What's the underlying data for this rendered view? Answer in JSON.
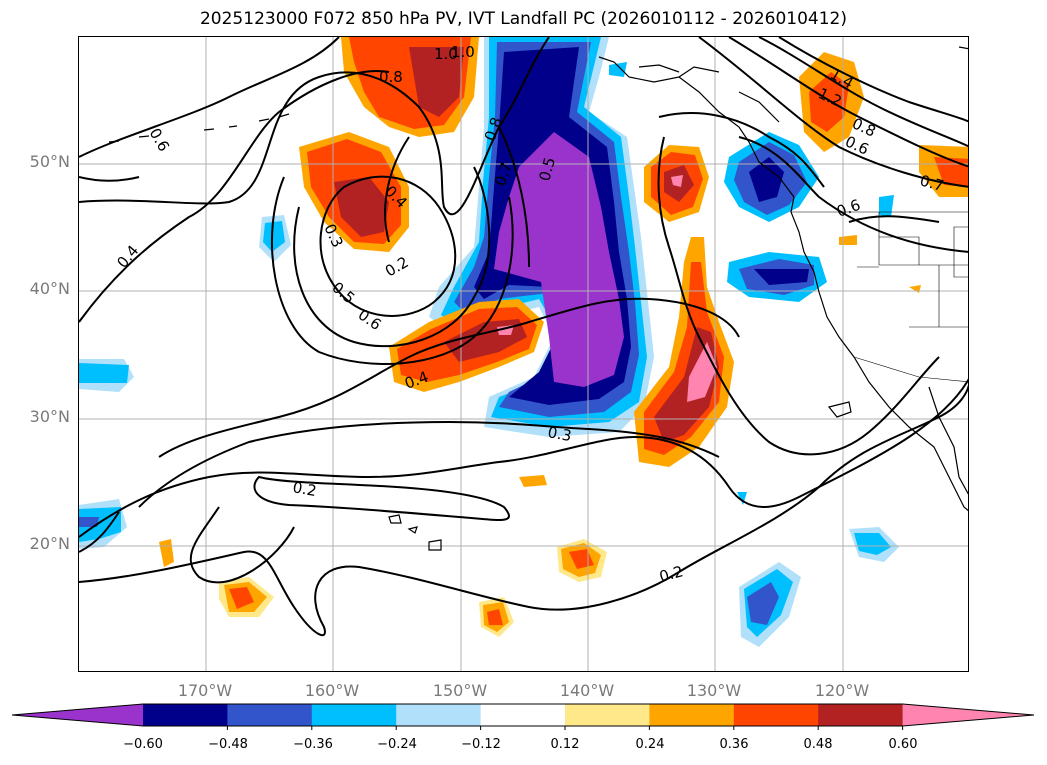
{
  "title": "2025123000 F072 850 hPa PV, IVT Landfall PC (2026010112 - 2026010412)",
  "map": {
    "projection": "PlateCarree",
    "lon_range": [
      -180,
      -110
    ],
    "lat_range": [
      10,
      60
    ],
    "lat_labels": [
      "50°N",
      "40°N",
      "30°N",
      "20°N"
    ],
    "lon_labels": [
      "170°W",
      "160°W",
      "150°W",
      "140°W",
      "130°W",
      "120°W"
    ],
    "contour_labels": [
      "0.6",
      "0.4",
      "1.0",
      "0.8",
      "1.0",
      "0.8",
      "0.7",
      "0.5",
      "0.4",
      "0.3",
      "0.2",
      "0.5",
      "0.6",
      "0.4",
      "0.3",
      "0.2",
      "0.2",
      "1.4",
      "1.2",
      "0.8",
      "0.6",
      "0.7",
      "0.6"
    ]
  },
  "colorbar": {
    "ticks": [
      "−0.60",
      "−0.48",
      "−0.36",
      "−0.24",
      "−0.12",
      "0.12",
      "0.24",
      "0.36",
      "0.48",
      "0.60"
    ],
    "colors": [
      "#9933cc",
      "#00008b",
      "#3355cc",
      "#00bfff",
      "#b0e0fa",
      "#ffffff",
      "#ffe88a",
      "#ffa500",
      "#ff4500",
      "#b22222",
      "#ff85b0"
    ]
  }
}
